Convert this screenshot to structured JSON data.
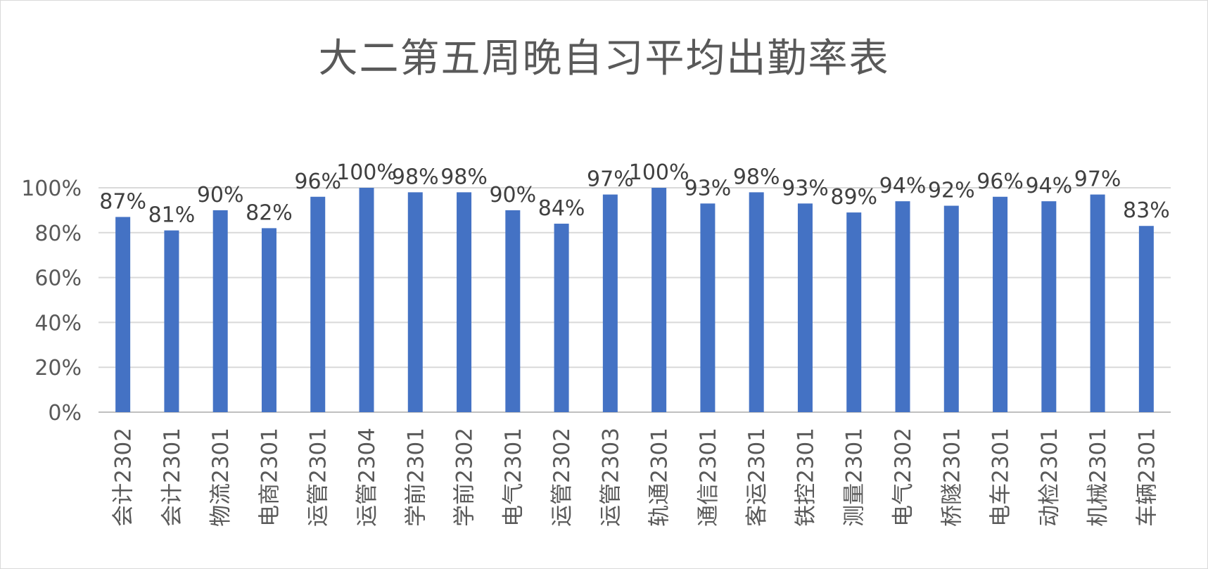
{
  "chart_data": {
    "type": "bar",
    "title": "大二第五周晚自习平均出勤率表",
    "categories": [
      "会计2302",
      "会计2301",
      "物流2301",
      "电商2301",
      "运管2301",
      "运管2304",
      "学前2301",
      "学前2302",
      "电气2301",
      "运管2302",
      "运管2303",
      "轨通2301",
      "通信2301",
      "客运2301",
      "铁控2301",
      "测量2301",
      "电气2302",
      "桥隧2301",
      "电车2301",
      "动检2301",
      "机械2301",
      "车辆2301"
    ],
    "values": [
      87,
      81,
      90,
      82,
      96,
      100,
      98,
      98,
      90,
      84,
      97,
      100,
      93,
      98,
      93,
      89,
      94,
      92,
      96,
      94,
      97,
      83
    ],
    "data_labels": [
      "87%",
      "81%",
      "90%",
      "82%",
      "96%",
      "100%",
      "98%",
      "98%",
      "90%",
      "84%",
      "97%",
      "100%",
      "93%",
      "98%",
      "93%",
      "89%",
      "94%",
      "92%",
      "96%",
      "94%",
      "97%",
      "83%"
    ],
    "y_ticks": [
      "0%",
      "20%",
      "40%",
      "60%",
      "80%",
      "100%"
    ],
    "ylim": [
      0,
      100
    ],
    "grid": true,
    "bar_color": "#4472C4",
    "xlabel": "",
    "ylabel": ""
  }
}
